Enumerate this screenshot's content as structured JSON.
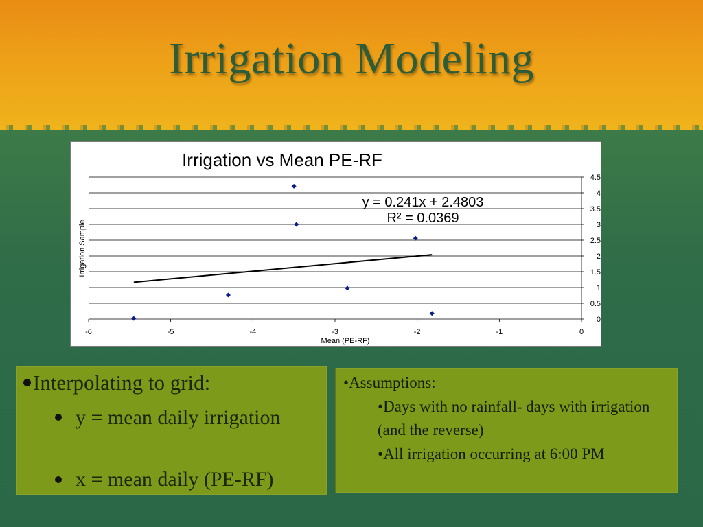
{
  "slide": {
    "title": "Irrigation Modeling",
    "left_panel": {
      "level1": "Interpolating to grid:",
      "items": [
        "y = mean daily irrigation",
        "x = mean daily (PE-RF)"
      ]
    },
    "right_panel": {
      "heading": "Assumptions:",
      "items": [
        "Days with  no rainfall- days with irrigation (and the reverse)",
        "All irrigation occurring at 6:00 PM"
      ]
    },
    "colors": {
      "title": "#2f5c38",
      "panel": "#7e9a1a",
      "marker": "#0a1a8c",
      "trendline": "#000000"
    }
  },
  "chart_data": {
    "type": "scatter",
    "title": "Irrigation vs Mean PE-RF",
    "xlabel": "Mean (PE-RF)",
    "ylabel": "Irrigation Sample",
    "xlim": [
      -6,
      0
    ],
    "ylim": [
      0,
      4.5
    ],
    "x_ticks": [
      "-6",
      "-5",
      "-4",
      "-3",
      "-2",
      "-1",
      "0"
    ],
    "y_ticks": [
      "0",
      "0.5",
      "1",
      "1.5",
      "2",
      "2.5",
      "3",
      "3.5",
      "4",
      "4.5"
    ],
    "y_axis_side": "right",
    "grid": "horizontal",
    "series": [
      {
        "x": [
          -5.45,
          -4.3,
          -3.5,
          -3.47,
          -2.85,
          -2.02,
          -1.82
        ],
        "y": [
          0.02,
          0.76,
          4.21,
          3.0,
          0.98,
          2.56,
          0.18
        ]
      }
    ],
    "trendline": {
      "equation": "y = 0.241x + 2.4803",
      "r_squared": "R² = 0.0369",
      "x_range": [
        -5.45,
        -1.82
      ]
    }
  }
}
